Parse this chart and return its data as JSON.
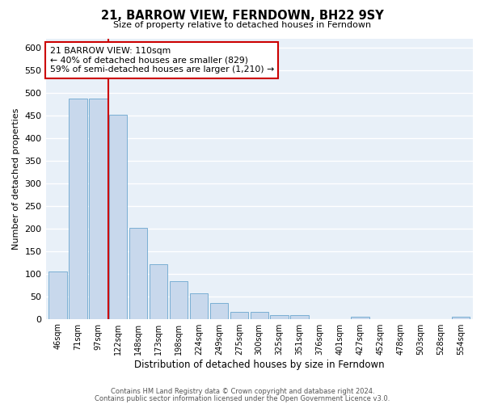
{
  "title": "21, BARROW VIEW, FERNDOWN, BH22 9SY",
  "subtitle": "Size of property relative to detached houses in Ferndown",
  "xlabel": "Distribution of detached houses by size in Ferndown",
  "ylabel": "Number of detached properties",
  "bar_color": "#c8d8ec",
  "bar_edge_color": "#7aafd4",
  "bg_color": "#e8f0f8",
  "grid_color": "#ffffff",
  "categories": [
    "46sqm",
    "71sqm",
    "97sqm",
    "122sqm",
    "148sqm",
    "173sqm",
    "198sqm",
    "224sqm",
    "249sqm",
    "275sqm",
    "300sqm",
    "325sqm",
    "351sqm",
    "376sqm",
    "401sqm",
    "427sqm",
    "452sqm",
    "478sqm",
    "503sqm",
    "528sqm",
    "554sqm"
  ],
  "values": [
    105,
    487,
    487,
    452,
    201,
    121,
    83,
    56,
    35,
    16,
    16,
    8,
    8,
    0,
    0,
    4,
    0,
    0,
    0,
    0,
    5
  ],
  "vline_x": 2.5,
  "vline_color": "#cc0000",
  "annotation_title": "21 BARROW VIEW: 110sqm",
  "annotation_line1": "← 40% of detached houses are smaller (829)",
  "annotation_line2": "59% of semi-detached houses are larger (1,210) →",
  "annotation_box_color": "#ffffff",
  "annotation_box_edge": "#cc0000",
  "ylim": [
    0,
    620
  ],
  "yticks": [
    0,
    50,
    100,
    150,
    200,
    250,
    300,
    350,
    400,
    450,
    500,
    550,
    600
  ],
  "footnote1": "Contains HM Land Registry data © Crown copyright and database right 2024.",
  "footnote2": "Contains public sector information licensed under the Open Government Licence v3.0."
}
